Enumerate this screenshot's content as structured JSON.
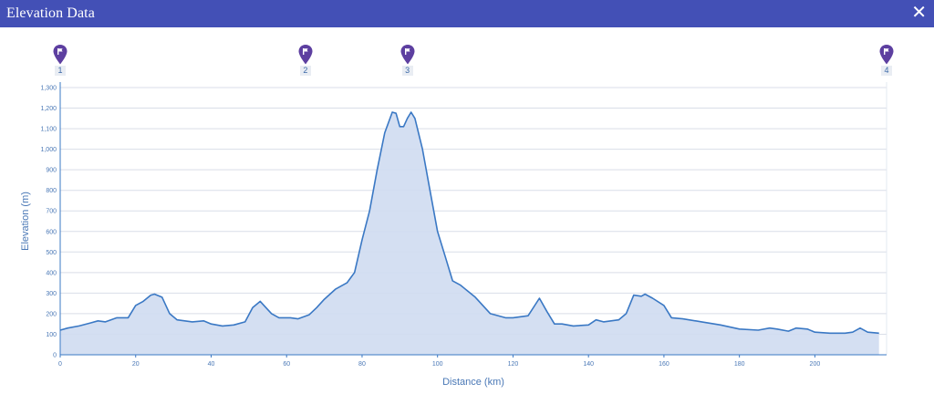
{
  "window": {
    "title": "Elevation Data",
    "close_glyph": "✕",
    "close_icon": "close-icon"
  },
  "waypoints": [
    {
      "label": "1",
      "icon": "flag-pin-icon",
      "distance_km": 0
    },
    {
      "label": "2",
      "icon": "flag-pin-icon",
      "distance_km": 65
    },
    {
      "label": "3",
      "icon": "flag-pin-icon",
      "distance_km": 92
    },
    {
      "label": "4",
      "icon": "flag-pin-icon",
      "distance_km": 219
    }
  ],
  "colors": {
    "header": "#4350b6",
    "line": "#3a78c4",
    "fill": "#cfdcf1",
    "grid": "#d9dee8",
    "marker": "#5d3fa0",
    "text": "#4a78b6"
  },
  "chart_data": {
    "type": "area",
    "xlabel": "Distance (km)",
    "ylabel": "Elevation (m)",
    "xlim": [
      0,
      219
    ],
    "ylim": [
      0,
      1300
    ],
    "x_ticks": [
      0,
      20,
      40,
      60,
      80,
      100,
      120,
      140,
      160,
      180,
      200
    ],
    "y_ticks": [
      0,
      100,
      200,
      300,
      400,
      500,
      600,
      700,
      800,
      900,
      1000,
      1100,
      1200,
      1300
    ],
    "y_tick_labels": [
      "0",
      "100",
      "200",
      "300",
      "400",
      "500",
      "600",
      "700",
      "800",
      "900",
      "1,000",
      "1,100",
      "1,200",
      "1,300"
    ],
    "grid": true,
    "series": [
      {
        "x": [
          0,
          2,
          5,
          8,
          10,
          12,
          15,
          18,
          20,
          22,
          24,
          25,
          27,
          29,
          31,
          35,
          38,
          40,
          43,
          46,
          49,
          51,
          53,
          54,
          56,
          58,
          61,
          63,
          66,
          68,
          70,
          73,
          76,
          78,
          80,
          82,
          84,
          86,
          88,
          89,
          90,
          91,
          92,
          93,
          94,
          96,
          98,
          100,
          102,
          104,
          106,
          108,
          110,
          114,
          118,
          120,
          124,
          127,
          129,
          131,
          133,
          136,
          140,
          142,
          144,
          148,
          150,
          152,
          154,
          155,
          157,
          160,
          162,
          165,
          170,
          175,
          180,
          185,
          188,
          190,
          193,
          195,
          198,
          200,
          204,
          208,
          210,
          212,
          214,
          217
        ],
        "y": [
          120,
          130,
          140,
          155,
          165,
          160,
          180,
          180,
          240,
          260,
          290,
          295,
          280,
          200,
          170,
          160,
          165,
          150,
          140,
          145,
          160,
          230,
          260,
          240,
          200,
          180,
          180,
          175,
          195,
          230,
          270,
          320,
          350,
          400,
          560,
          700,
          900,
          1080,
          1180,
          1175,
          1110,
          1110,
          1150,
          1180,
          1150,
          1000,
          800,
          600,
          480,
          360,
          340,
          310,
          280,
          200,
          180,
          180,
          190,
          275,
          210,
          150,
          150,
          140,
          145,
          170,
          160,
          170,
          200,
          290,
          285,
          295,
          275,
          240,
          180,
          175,
          160,
          145,
          125,
          120,
          130,
          125,
          115,
          130,
          125,
          110,
          105,
          105,
          110,
          130,
          110,
          105
        ]
      }
    ]
  }
}
